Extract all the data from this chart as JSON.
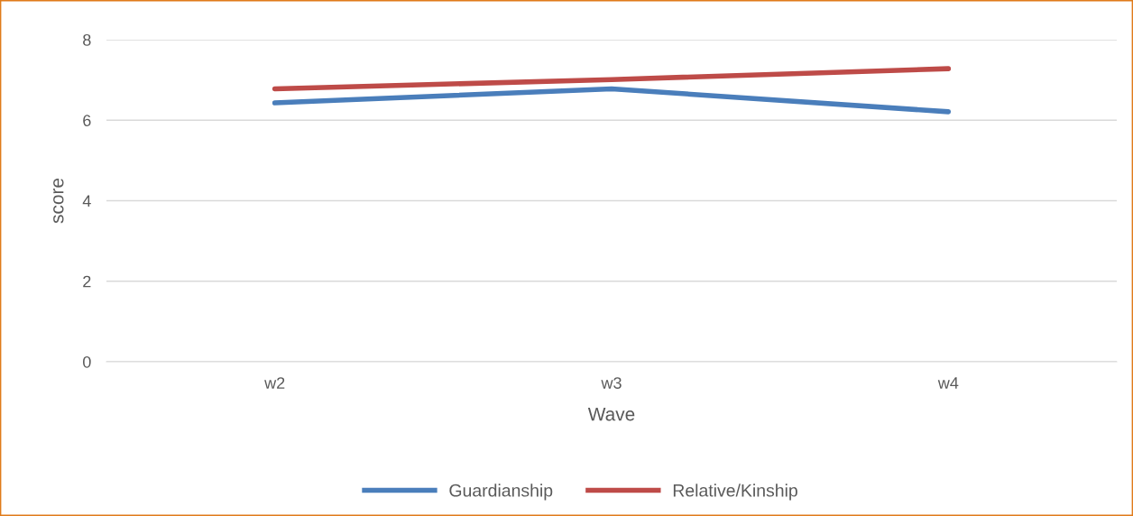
{
  "chart_data": {
    "type": "line",
    "xlabel": "Wave",
    "ylabel": "score",
    "categories": [
      "w2",
      "w3",
      "w4"
    ],
    "series": [
      {
        "name": "Guardianship",
        "color": "#4a7ebb",
        "values": [
          6.43,
          6.78,
          6.21
        ]
      },
      {
        "name": "Relative/Kinship",
        "color": "#be4b48",
        "values": [
          6.78,
          7.01,
          7.28
        ]
      }
    ],
    "ylim": [
      0,
      8
    ],
    "yticks": [
      0,
      2,
      4,
      6,
      8
    ],
    "grid": "y",
    "legend": "bottom",
    "marker": "none",
    "line_style": "solid"
  }
}
